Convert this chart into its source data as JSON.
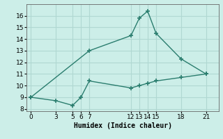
{
  "line1_x": [
    0,
    7,
    12,
    13,
    14,
    15,
    18,
    21
  ],
  "line1_y": [
    9.0,
    13.0,
    14.3,
    15.8,
    16.4,
    14.5,
    12.3,
    11.0
  ],
  "line2_x": [
    0,
    3,
    5,
    6,
    7,
    12,
    13,
    14,
    15,
    18,
    21
  ],
  "line2_y": [
    9.0,
    8.7,
    8.3,
    9.0,
    10.4,
    9.8,
    10.0,
    10.2,
    10.4,
    10.7,
    11.0
  ],
  "color": "#2a7d6e",
  "bg_color": "#cceee8",
  "grid_color": "#b0d8d2",
  "xlabel": "Humidex (Indice chaleur)",
  "xticks": [
    0,
    3,
    5,
    6,
    7,
    12,
    13,
    14,
    15,
    18,
    21
  ],
  "yticks": [
    8,
    9,
    10,
    11,
    12,
    13,
    14,
    15,
    16
  ],
  "ylim": [
    7.8,
    17.0
  ],
  "xlim": [
    -0.5,
    22.5
  ]
}
